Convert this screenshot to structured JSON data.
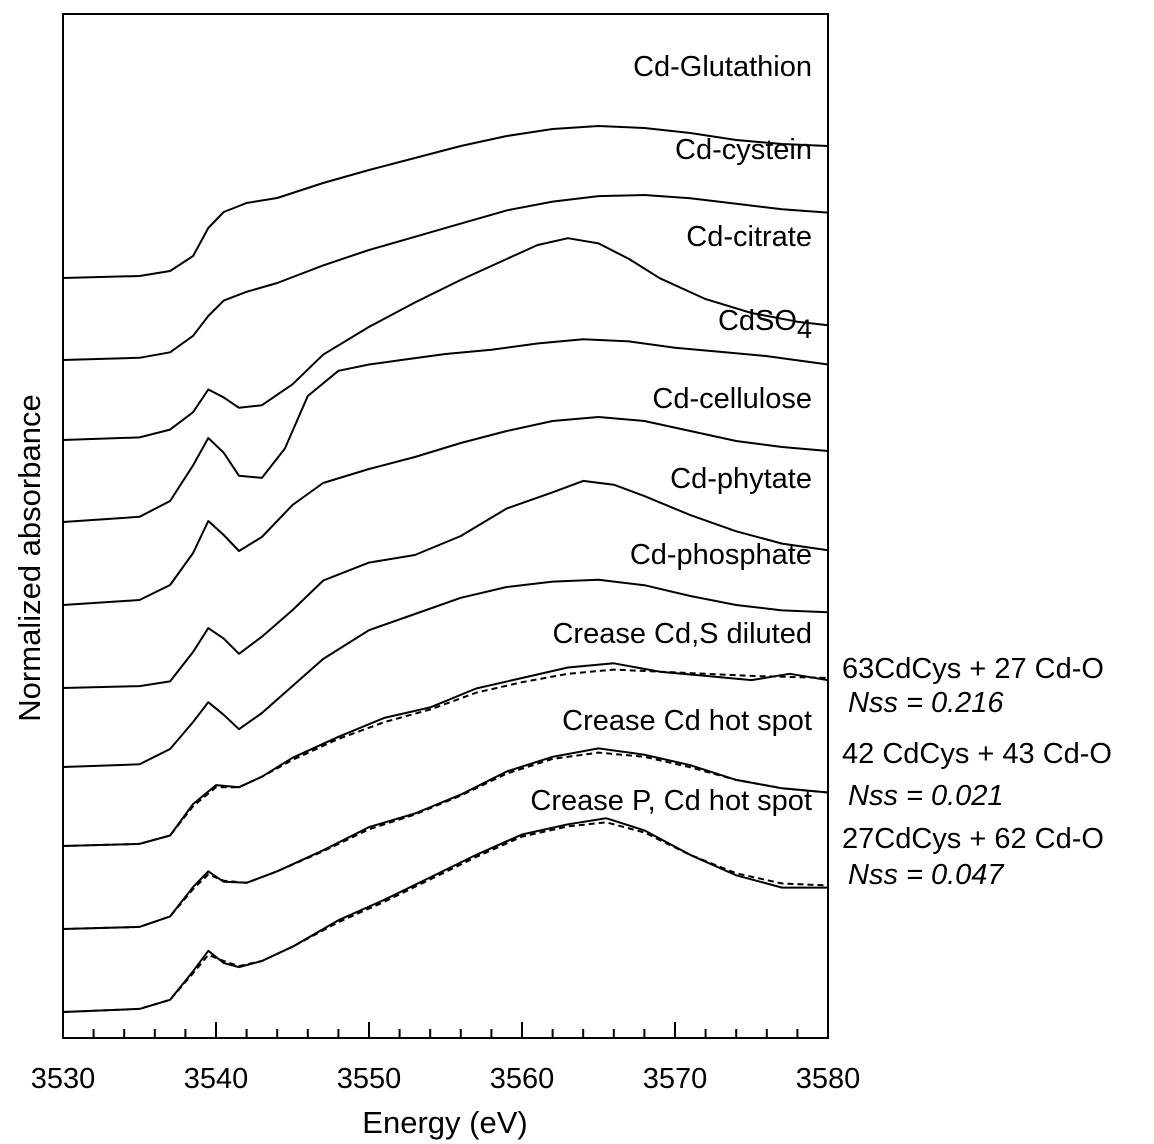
{
  "chart_data": {
    "type": "line",
    "xlabel": "Energy (eV)",
    "ylabel": "Normalized absorbance",
    "xlim": [
      3530,
      3580
    ],
    "x_ticks": [
      "3530",
      "3540",
      "3550",
      "3560",
      "3570",
      "3580"
    ],
    "y_ticks": "none (stacked, offset spectra)",
    "series": [
      {
        "name": "Cd-Glutathion",
        "style": "solid",
        "points": [
          [
            3530,
            0.0
          ],
          [
            3535,
            0.02
          ],
          [
            3537,
            0.07
          ],
          [
            3538.5,
            0.22
          ],
          [
            3539.5,
            0.5
          ],
          [
            3540.5,
            0.66
          ],
          [
            3542,
            0.75
          ],
          [
            3544,
            0.8
          ],
          [
            3547,
            0.95
          ],
          [
            3550,
            1.08
          ],
          [
            3553,
            1.2
          ],
          [
            3556,
            1.32
          ],
          [
            3559,
            1.42
          ],
          [
            3562,
            1.49
          ],
          [
            3565,
            1.52
          ],
          [
            3568,
            1.5
          ],
          [
            3571,
            1.45
          ],
          [
            3574,
            1.38
          ],
          [
            3577,
            1.34
          ],
          [
            3580,
            1.32
          ]
        ]
      },
      {
        "name": "Cd-cystein",
        "style": "solid",
        "points": [
          [
            3530,
            0.0
          ],
          [
            3535,
            0.02
          ],
          [
            3537,
            0.07
          ],
          [
            3538.5,
            0.22
          ],
          [
            3539.5,
            0.4
          ],
          [
            3540.5,
            0.54
          ],
          [
            3542,
            0.62
          ],
          [
            3544,
            0.7
          ],
          [
            3547,
            0.86
          ],
          [
            3550,
            1.0
          ],
          [
            3553,
            1.12
          ],
          [
            3556,
            1.24
          ],
          [
            3559,
            1.36
          ],
          [
            3562,
            1.44
          ],
          [
            3565,
            1.49
          ],
          [
            3568,
            1.5
          ],
          [
            3571,
            1.47
          ],
          [
            3574,
            1.42
          ],
          [
            3577,
            1.37
          ],
          [
            3580,
            1.34
          ]
        ]
      },
      {
        "name": "Cd-citrate",
        "style": "solid",
        "points": [
          [
            3530,
            0.0
          ],
          [
            3535,
            0.03
          ],
          [
            3537,
            0.12
          ],
          [
            3538.5,
            0.32
          ],
          [
            3539.5,
            0.58
          ],
          [
            3540.5,
            0.49
          ],
          [
            3541.5,
            0.37
          ],
          [
            3543,
            0.4
          ],
          [
            3545,
            0.64
          ],
          [
            3547,
            0.98
          ],
          [
            3550,
            1.3
          ],
          [
            3553,
            1.58
          ],
          [
            3556,
            1.84
          ],
          [
            3559,
            2.08
          ],
          [
            3561,
            2.24
          ],
          [
            3563,
            2.32
          ],
          [
            3565,
            2.26
          ],
          [
            3567,
            2.08
          ],
          [
            3569,
            1.86
          ],
          [
            3572,
            1.62
          ],
          [
            3575,
            1.46
          ],
          [
            3578,
            1.36
          ],
          [
            3580,
            1.32
          ]
        ]
      },
      {
        "name": "CdSO4",
        "style": "solid",
        "points": [
          [
            3530,
            0.0
          ],
          [
            3535,
            0.05
          ],
          [
            3537,
            0.2
          ],
          [
            3538.5,
            0.54
          ],
          [
            3539.5,
            0.8
          ],
          [
            3540.5,
            0.66
          ],
          [
            3541.5,
            0.44
          ],
          [
            3543,
            0.42
          ],
          [
            3544.5,
            0.7
          ],
          [
            3546,
            1.2
          ],
          [
            3548,
            1.44
          ],
          [
            3550,
            1.5
          ],
          [
            3552,
            1.54
          ],
          [
            3555,
            1.6
          ],
          [
            3558,
            1.64
          ],
          [
            3561,
            1.7
          ],
          [
            3564,
            1.74
          ],
          [
            3567,
            1.72
          ],
          [
            3570,
            1.66
          ],
          [
            3573,
            1.62
          ],
          [
            3576,
            1.58
          ],
          [
            3580,
            1.5
          ]
        ]
      },
      {
        "name": "Cd-cellulose",
        "style": "solid",
        "points": [
          [
            3530,
            0.0
          ],
          [
            3535,
            0.05
          ],
          [
            3537,
            0.2
          ],
          [
            3538.5,
            0.52
          ],
          [
            3539.5,
            0.84
          ],
          [
            3540.5,
            0.7
          ],
          [
            3541.5,
            0.54
          ],
          [
            3543,
            0.68
          ],
          [
            3545,
            1.0
          ],
          [
            3547,
            1.22
          ],
          [
            3550,
            1.36
          ],
          [
            3553,
            1.48
          ],
          [
            3556,
            1.62
          ],
          [
            3559,
            1.74
          ],
          [
            3562,
            1.84
          ],
          [
            3565,
            1.88
          ],
          [
            3568,
            1.84
          ],
          [
            3571,
            1.74
          ],
          [
            3574,
            1.64
          ],
          [
            3577,
            1.58
          ],
          [
            3580,
            1.54
          ]
        ]
      },
      {
        "name": "Cd-phytate",
        "style": "solid",
        "points": [
          [
            3530,
            0.0
          ],
          [
            3535,
            0.02
          ],
          [
            3537,
            0.07
          ],
          [
            3538.5,
            0.38
          ],
          [
            3539.5,
            0.63
          ],
          [
            3540.5,
            0.52
          ],
          [
            3541.5,
            0.36
          ],
          [
            3543,
            0.54
          ],
          [
            3545,
            0.82
          ],
          [
            3547,
            1.13
          ],
          [
            3550,
            1.32
          ],
          [
            3553,
            1.4
          ],
          [
            3556,
            1.6
          ],
          [
            3559,
            1.89
          ],
          [
            3562,
            2.06
          ],
          [
            3564,
            2.18
          ],
          [
            3566,
            2.14
          ],
          [
            3568,
            2.02
          ],
          [
            3571,
            1.82
          ],
          [
            3574,
            1.65
          ],
          [
            3577,
            1.52
          ],
          [
            3580,
            1.45
          ]
        ]
      },
      {
        "name": "Cd-phosphate",
        "style": "solid",
        "points": [
          [
            3530,
            0.0
          ],
          [
            3535,
            0.03
          ],
          [
            3537,
            0.2
          ],
          [
            3538.5,
            0.5
          ],
          [
            3539.5,
            0.72
          ],
          [
            3540.5,
            0.58
          ],
          [
            3541.5,
            0.42
          ],
          [
            3543,
            0.6
          ],
          [
            3545,
            0.9
          ],
          [
            3547,
            1.2
          ],
          [
            3550,
            1.52
          ],
          [
            3553,
            1.7
          ],
          [
            3556,
            1.88
          ],
          [
            3559,
            2.0
          ],
          [
            3562,
            2.06
          ],
          [
            3565,
            2.08
          ],
          [
            3568,
            2.02
          ],
          [
            3571,
            1.9
          ],
          [
            3574,
            1.8
          ],
          [
            3577,
            1.74
          ],
          [
            3580,
            1.72
          ]
        ]
      },
      {
        "name": "Crease Cd,S diluted",
        "style": "solid",
        "points": [
          [
            3530,
            0.0
          ],
          [
            3535,
            0.02
          ],
          [
            3537,
            0.1
          ],
          [
            3538.5,
            0.4
          ],
          [
            3540,
            0.58
          ],
          [
            3541.5,
            0.56
          ],
          [
            3543,
            0.66
          ],
          [
            3545,
            0.84
          ],
          [
            3548,
            1.04
          ],
          [
            3551,
            1.22
          ],
          [
            3554,
            1.32
          ],
          [
            3557,
            1.5
          ],
          [
            3560,
            1.6
          ],
          [
            3563,
            1.7
          ],
          [
            3566,
            1.74
          ],
          [
            3569,
            1.66
          ],
          [
            3572,
            1.62
          ],
          [
            3575,
            1.58
          ],
          [
            3577.5,
            1.64
          ],
          [
            3580,
            1.58
          ]
        ]
      },
      {
        "name": "Crease Cd,S diluted fit",
        "style": "dashed",
        "points": [
          [
            3530,
            0.0
          ],
          [
            3535,
            0.02
          ],
          [
            3537,
            0.1
          ],
          [
            3538.5,
            0.38
          ],
          [
            3540,
            0.56
          ],
          [
            3541.5,
            0.56
          ],
          [
            3543,
            0.66
          ],
          [
            3545,
            0.82
          ],
          [
            3548,
            1.02
          ],
          [
            3551,
            1.18
          ],
          [
            3554,
            1.3
          ],
          [
            3557,
            1.46
          ],
          [
            3560,
            1.56
          ],
          [
            3563,
            1.64
          ],
          [
            3566,
            1.68
          ],
          [
            3569,
            1.66
          ],
          [
            3572,
            1.64
          ],
          [
            3575,
            1.62
          ],
          [
            3580,
            1.6
          ]
        ]
      },
      {
        "name": "Crease Cd hot spot",
        "style": "solid",
        "points": [
          [
            3530,
            0.0
          ],
          [
            3535,
            0.02
          ],
          [
            3537,
            0.12
          ],
          [
            3538.5,
            0.4
          ],
          [
            3539.5,
            0.55
          ],
          [
            3540.5,
            0.45
          ],
          [
            3542,
            0.44
          ],
          [
            3544,
            0.55
          ],
          [
            3547,
            0.75
          ],
          [
            3550,
            0.97
          ],
          [
            3553,
            1.1
          ],
          [
            3556,
            1.28
          ],
          [
            3559,
            1.5
          ],
          [
            3562,
            1.64
          ],
          [
            3565,
            1.72
          ],
          [
            3568,
            1.66
          ],
          [
            3571,
            1.56
          ],
          [
            3574,
            1.42
          ],
          [
            3577,
            1.34
          ],
          [
            3580,
            1.3
          ]
        ]
      },
      {
        "name": "Crease Cd hot spot fit",
        "style": "dashed",
        "points": [
          [
            3530,
            0.0
          ],
          [
            3535,
            0.02
          ],
          [
            3537,
            0.12
          ],
          [
            3538.5,
            0.38
          ],
          [
            3539.5,
            0.52
          ],
          [
            3540.5,
            0.46
          ],
          [
            3542,
            0.44
          ],
          [
            3544,
            0.55
          ],
          [
            3547,
            0.74
          ],
          [
            3550,
            0.95
          ],
          [
            3553,
            1.09
          ],
          [
            3556,
            1.27
          ],
          [
            3559,
            1.48
          ],
          [
            3562,
            1.62
          ],
          [
            3565,
            1.68
          ],
          [
            3568,
            1.64
          ],
          [
            3571,
            1.54
          ],
          [
            3574,
            1.42
          ],
          [
            3577,
            1.34
          ],
          [
            3580,
            1.3
          ]
        ]
      },
      {
        "name": "Crease P, Cd hot spot",
        "style": "solid",
        "points": [
          [
            3530,
            0.0
          ],
          [
            3535,
            0.03
          ],
          [
            3537,
            0.12
          ],
          [
            3538.5,
            0.4
          ],
          [
            3539.5,
            0.6
          ],
          [
            3540.5,
            0.48
          ],
          [
            3541.5,
            0.44
          ],
          [
            3543,
            0.5
          ],
          [
            3545,
            0.64
          ],
          [
            3548,
            0.9
          ],
          [
            3551,
            1.1
          ],
          [
            3554,
            1.32
          ],
          [
            3557,
            1.54
          ],
          [
            3560,
            1.74
          ],
          [
            3563,
            1.84
          ],
          [
            3565.5,
            1.9
          ],
          [
            3568,
            1.78
          ],
          [
            3571,
            1.54
          ],
          [
            3574,
            1.34
          ],
          [
            3577,
            1.22
          ],
          [
            3580,
            1.22
          ]
        ]
      },
      {
        "name": "Crease P, Cd hot spot fit",
        "style": "dashed",
        "points": [
          [
            3530,
            0.0
          ],
          [
            3535,
            0.03
          ],
          [
            3537,
            0.12
          ],
          [
            3538.5,
            0.38
          ],
          [
            3539.5,
            0.56
          ],
          [
            3540.5,
            0.5
          ],
          [
            3541.5,
            0.45
          ],
          [
            3543,
            0.5
          ],
          [
            3545,
            0.64
          ],
          [
            3548,
            0.88
          ],
          [
            3551,
            1.08
          ],
          [
            3554,
            1.3
          ],
          [
            3557,
            1.52
          ],
          [
            3560,
            1.72
          ],
          [
            3563,
            1.82
          ],
          [
            3565.5,
            1.86
          ],
          [
            3568,
            1.76
          ],
          [
            3571,
            1.54
          ],
          [
            3574,
            1.36
          ],
          [
            3577,
            1.26
          ],
          [
            3580,
            1.24
          ]
        ]
      }
    ],
    "fit_annotations": [
      {
        "formula": "63CdCys + 27 Cd-O",
        "nss": "Nss = 0.216"
      },
      {
        "formula": "42 CdCys + 43 Cd-O",
        "nss": "Nss = 0.021"
      },
      {
        "formula": "27CdCys + 62 Cd-O",
        "nss": "Nss = 0.047"
      }
    ],
    "grid": false,
    "legend": "none (labels placed on curves)"
  }
}
